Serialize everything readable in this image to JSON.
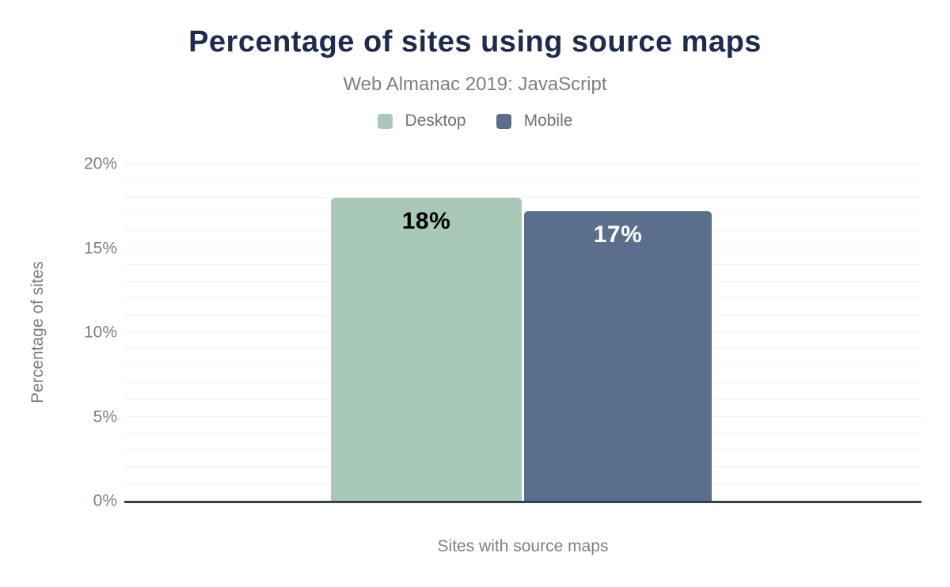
{
  "chart_data": {
    "type": "bar",
    "title": "Percentage of sites using source maps",
    "subtitle": "Web Almanac 2019: JavaScript",
    "xlabel": "Sites with source maps",
    "ylabel": "Percentage of sites",
    "categories": [
      "Sites with source maps"
    ],
    "series": [
      {
        "name": "Desktop",
        "values": [
          18
        ],
        "display_label": "18%",
        "color": "#a9c9b8",
        "label_color": "#000000"
      },
      {
        "name": "Mobile",
        "values": [
          17.2
        ],
        "display_label": "17%",
        "color": "#5c6e8d",
        "label_color": "#ffffff"
      }
    ],
    "ylim": [
      0,
      20
    ],
    "ytick_step": 5,
    "yticks": [
      "0%",
      "5%",
      "10%",
      "15%",
      "20%"
    ],
    "grid": {
      "on": true,
      "step": 1,
      "color": "#f2f2f2"
    },
    "legend": {
      "position": "top",
      "items": [
        {
          "label": "Desktop",
          "color": "#a9c9b8"
        },
        {
          "label": "Mobile",
          "color": "#5c6e8d"
        }
      ]
    },
    "colors": {
      "title": "#1f2b4d",
      "subtitle": "#7b8087",
      "axis_text": "#7b8087",
      "legend_text": "#6d7278",
      "axis_line": "#394150",
      "background": "#ffffff"
    }
  }
}
